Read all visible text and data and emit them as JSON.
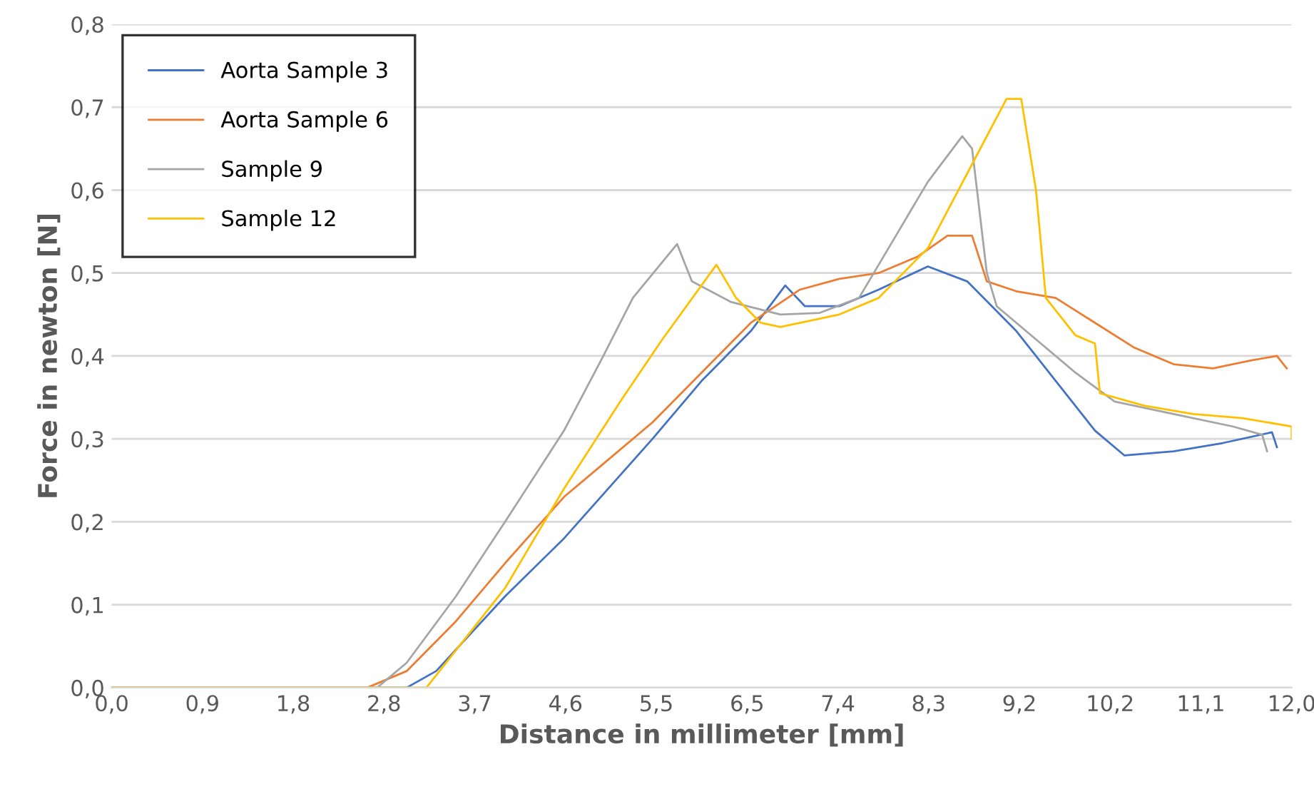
{
  "chart_data": {
    "type": "line",
    "xlabel": "Distance in millimeter [mm]",
    "ylabel": "Force in newton [N]",
    "xlim": [
      0,
      12
    ],
    "ylim": [
      0,
      0.8
    ],
    "xticks": [
      {
        "value": 0,
        "label": "0,0"
      },
      {
        "value": 0.923,
        "label": "0,9"
      },
      {
        "value": 1.846,
        "label": "1,8"
      },
      {
        "value": 2.769,
        "label": "2,8"
      },
      {
        "value": 3.692,
        "label": "3,7"
      },
      {
        "value": 4.615,
        "label": "4,6"
      },
      {
        "value": 5.538,
        "label": "5,5"
      },
      {
        "value": 6.462,
        "label": "6,5"
      },
      {
        "value": 7.385,
        "label": "7,4"
      },
      {
        "value": 8.308,
        "label": "8,3"
      },
      {
        "value": 9.231,
        "label": "9,2"
      },
      {
        "value": 10.154,
        "label": "10,2"
      },
      {
        "value": 11.077,
        "label": "11,1"
      },
      {
        "value": 12,
        "label": "12,0"
      }
    ],
    "yticks": [
      {
        "value": 0,
        "label": "0,0"
      },
      {
        "value": 0.1,
        "label": "0,1"
      },
      {
        "value": 0.2,
        "label": "0,2"
      },
      {
        "value": 0.3,
        "label": "0,3"
      },
      {
        "value": 0.4,
        "label": "0,4"
      },
      {
        "value": 0.5,
        "label": "0,5"
      },
      {
        "value": 0.6,
        "label": "0,6"
      },
      {
        "value": 0.7,
        "label": "0,7"
      },
      {
        "value": 0.8,
        "label": "0,8"
      }
    ],
    "grid": "y",
    "legend": "top left",
    "marker": "none",
    "line_style": "solid",
    "series": [
      {
        "name": "Aorta Sample 3",
        "color": "#4472c4",
        "x": [
          0,
          3.0,
          3.3,
          4.0,
          4.6,
          5.5,
          6.0,
          6.5,
          6.85,
          7.05,
          7.4,
          7.8,
          8.3,
          8.7,
          9.2,
          9.6,
          10.0,
          10.3,
          10.8,
          11.3,
          11.8,
          11.85
        ],
        "values": [
          0,
          0,
          0.02,
          0.11,
          0.18,
          0.3,
          0.37,
          0.43,
          0.485,
          0.46,
          0.46,
          0.48,
          0.508,
          0.49,
          0.43,
          0.37,
          0.31,
          0.28,
          0.285,
          0.295,
          0.308,
          0.29
        ]
      },
      {
        "name": "Aorta Sample 6",
        "color": "#ed7d31",
        "x": [
          0,
          2.6,
          3.0,
          3.5,
          4.0,
          4.6,
          5.0,
          5.5,
          6.0,
          6.5,
          7.0,
          7.4,
          7.8,
          8.2,
          8.5,
          8.75,
          8.9,
          9.2,
          9.6,
          10.0,
          10.4,
          10.8,
          11.2,
          11.6,
          11.85,
          11.95
        ],
        "values": [
          0,
          0,
          0.02,
          0.08,
          0.15,
          0.23,
          0.27,
          0.32,
          0.38,
          0.44,
          0.48,
          0.493,
          0.5,
          0.52,
          0.545,
          0.545,
          0.49,
          0.478,
          0.47,
          0.44,
          0.41,
          0.39,
          0.385,
          0.395,
          0.4,
          0.385
        ]
      },
      {
        "name": "Sample 9",
        "color": "#a5a5a5",
        "x": [
          0,
          2.7,
          3.0,
          3.5,
          4.0,
          4.6,
          5.0,
          5.3,
          5.75,
          5.9,
          6.3,
          6.8,
          7.2,
          7.6,
          8.0,
          8.3,
          8.65,
          8.75,
          8.9,
          9.0,
          9.4,
          9.8,
          10.2,
          10.8,
          11.4,
          11.7,
          11.75
        ],
        "values": [
          0,
          0,
          0.03,
          0.11,
          0.2,
          0.31,
          0.4,
          0.47,
          0.535,
          0.49,
          0.465,
          0.45,
          0.452,
          0.47,
          0.55,
          0.61,
          0.665,
          0.65,
          0.5,
          0.46,
          0.42,
          0.38,
          0.345,
          0.33,
          0.315,
          0.305,
          0.285
        ]
      },
      {
        "name": "Sample 12",
        "color": "#ffc000",
        "x": [
          0,
          3.2,
          3.4,
          4.0,
          4.6,
          5.2,
          5.6,
          6.15,
          6.35,
          6.6,
          6.8,
          7.4,
          7.8,
          8.3,
          8.7,
          9.1,
          9.25,
          9.4,
          9.5,
          9.8,
          10.0,
          10.05,
          10.5,
          11.0,
          11.5,
          12.0,
          12.0
        ],
        "values": [
          0,
          0,
          0.03,
          0.12,
          0.24,
          0.35,
          0.42,
          0.51,
          0.47,
          0.44,
          0.435,
          0.45,
          0.47,
          0.53,
          0.62,
          0.71,
          0.71,
          0.6,
          0.47,
          0.425,
          0.415,
          0.355,
          0.34,
          0.33,
          0.325,
          0.315,
          0.3
        ]
      }
    ]
  }
}
